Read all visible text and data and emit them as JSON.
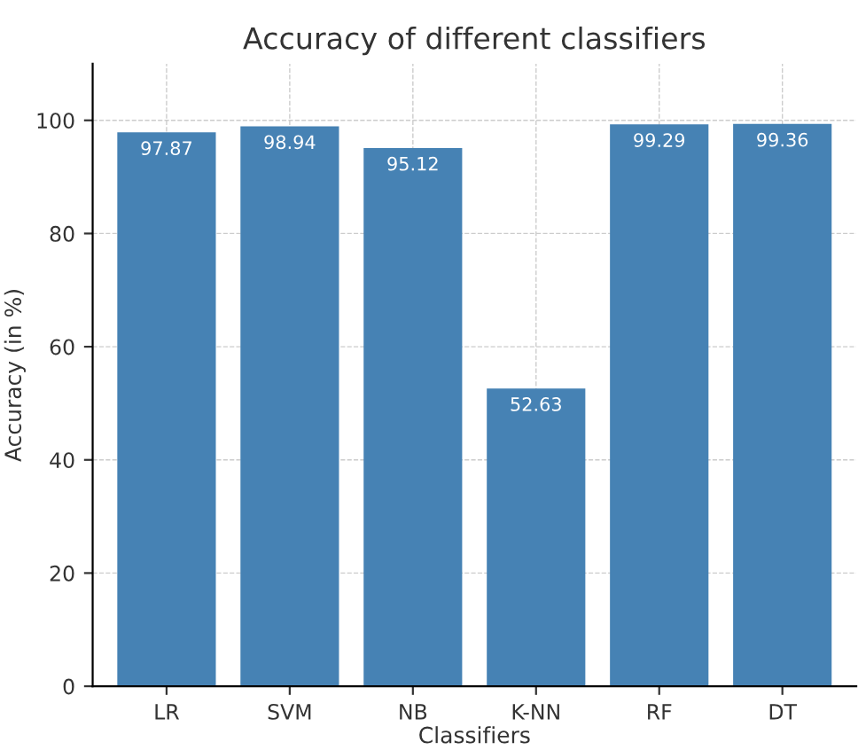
{
  "chart_data": {
    "type": "bar",
    "title": "Accuracy of different classifiers",
    "xlabel": "Classifiers",
    "ylabel": "Accuracy (in %)",
    "categories": [
      "LR",
      "SVM",
      "NB",
      "K-NN",
      "RF",
      "DT"
    ],
    "values": [
      97.87,
      98.94,
      95.12,
      52.63,
      99.29,
      99.36
    ],
    "color": "#4682b4",
    "ylim": [
      0,
      110
    ],
    "yticks": [
      0,
      20,
      40,
      60,
      80,
      100
    ],
    "grid": true,
    "data_labels": true
  }
}
